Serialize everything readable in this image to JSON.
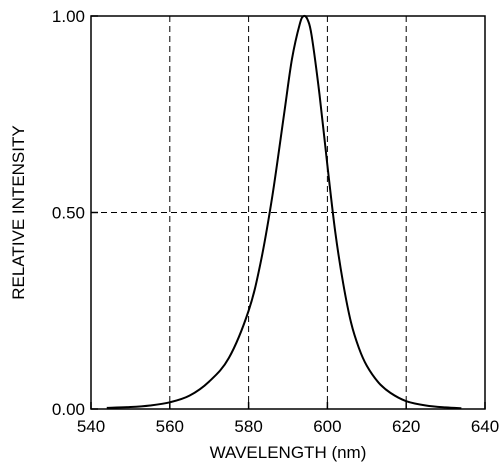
{
  "chart_data": {
    "type": "line",
    "xlabel": "WAVELENGTH (nm)",
    "ylabel": "RELATIVE INTENSITY",
    "xlim": [
      540,
      640
    ],
    "ylim": [
      0,
      1
    ],
    "xticks": [
      540,
      560,
      580,
      600,
      620,
      640
    ],
    "yticks": [
      0.0,
      0.5,
      1.0
    ],
    "xtick_labels": [
      "540",
      "560",
      "580",
      "600",
      "620",
      "640"
    ],
    "ytick_labels": [
      "0.00",
      "0.50",
      "1.00"
    ],
    "grid": true,
    "grid_style": "dashed",
    "series": [
      {
        "color": "#000000",
        "x": [
          544,
          550,
          555,
          560,
          565,
          570,
          575,
          580,
          583,
          586,
          589,
          591,
          593,
          594,
          595,
          596,
          598,
          600,
          602,
          604,
          606,
          608,
          610,
          613,
          616,
          620,
          625,
          630,
          634
        ],
        "y": [
          0.003,
          0.005,
          0.009,
          0.017,
          0.034,
          0.07,
          0.13,
          0.25,
          0.37,
          0.54,
          0.75,
          0.89,
          0.98,
          1.0,
          0.99,
          0.95,
          0.8,
          0.62,
          0.45,
          0.32,
          0.22,
          0.155,
          0.11,
          0.067,
          0.041,
          0.02,
          0.009,
          0.004,
          0.002
        ]
      }
    ]
  }
}
